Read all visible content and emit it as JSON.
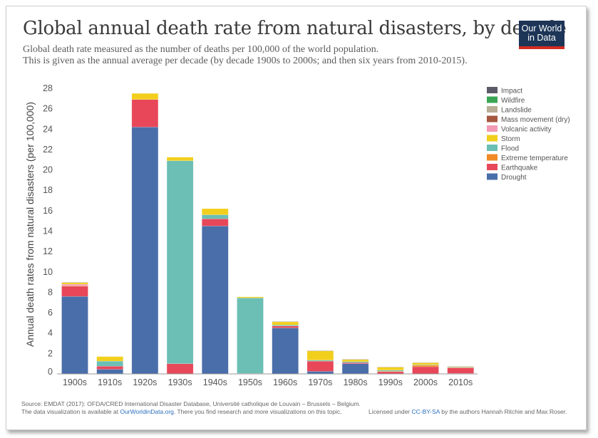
{
  "header": {
    "title": "Global annual death rate from natural disasters, by decade",
    "subtitle_line1": "Global death rate measured as the number of deaths per 100,000 of the world population.",
    "subtitle_line2": "This is given as the annual average per decade (by decade 1900s to 2000s; and then six years from 2010-2015).",
    "logo_line1": "Our World",
    "logo_line2": "in Data"
  },
  "footer": {
    "source": "Source: EMDAT (2017): OFDA/CRED International Disaster Database, Université catholique de Louvain – Brussels – Belgium.",
    "availability_prefix": "The data visualization is available at ",
    "availability_link": "OurWorldinData.org",
    "availability_suffix": ". There you find research and more visualizations on this topic.",
    "license_prefix": "Licensed under ",
    "license_link": "CC-BY-SA",
    "license_suffix": " by the authors Hannah Ritchie and Max Roser."
  },
  "colors": {
    "Impact": "#5b5b6a",
    "Wildfire": "#3aa655",
    "Landslide": "#b8ad96",
    "Mass movement (dry)": "#a5573f",
    "Volcanic activity": "#f29ab4",
    "Storm": "#f2cf1d",
    "Flood": "#6bbfb4",
    "Extreme temperature": "#f08a26",
    "Earthquake": "#e8475a",
    "Drought": "#4a6ea9"
  },
  "chart_data": {
    "type": "bar",
    "stacked": true,
    "title": "Global annual death rate from natural disasters, by decade",
    "ylabel": "Annual death rates from natural disasters (per 100,000)",
    "xlabel": "",
    "ylim": [
      0,
      28
    ],
    "yticks": [
      0,
      2,
      4,
      6,
      8,
      10,
      12,
      14,
      16,
      18,
      20,
      22,
      24,
      26,
      28
    ],
    "grid": false,
    "legend_position": "top-right",
    "legend_order": [
      "Impact",
      "Wildfire",
      "Landslide",
      "Mass movement (dry)",
      "Volcanic activity",
      "Storm",
      "Flood",
      "Extreme temperature",
      "Earthquake",
      "Drought"
    ],
    "categories": [
      "1900s",
      "1910s",
      "1920s",
      "1930s",
      "1940s",
      "1950s",
      "1960s",
      "1970s",
      "1980s",
      "1990s",
      "2000s",
      "2010s"
    ],
    "series": [
      {
        "name": "Drought",
        "values": [
          7.6,
          0.45,
          24.2,
          0,
          14.5,
          0,
          4.5,
          0.25,
          1.0,
          0.02,
          0.0,
          0.05
        ]
      },
      {
        "name": "Earthquake",
        "values": [
          1.0,
          0.3,
          2.7,
          1.0,
          0.7,
          0.05,
          0.2,
          1.0,
          0.1,
          0.2,
          0.7,
          0.55
        ]
      },
      {
        "name": "Extreme temperature",
        "values": [
          0.05,
          0,
          0,
          0,
          0,
          0,
          0,
          0,
          0,
          0.05,
          0.15,
          0.03
        ]
      },
      {
        "name": "Flood",
        "values": [
          0,
          0.5,
          0,
          19.9,
          0.4,
          7.4,
          0.1,
          0.1,
          0.1,
          0.1,
          0.05,
          0.05
        ]
      },
      {
        "name": "Volcanic activity",
        "values": [
          0.15,
          0,
          0,
          0,
          0,
          0,
          0,
          0,
          0,
          0,
          0,
          0
        ]
      },
      {
        "name": "Storm",
        "values": [
          0.15,
          0.45,
          0.6,
          0.35,
          0.6,
          0.1,
          0.3,
          0.9,
          0.2,
          0.3,
          0.2,
          0.05
        ]
      },
      {
        "name": "Mass movement (dry)",
        "values": [
          0,
          0,
          0,
          0,
          0,
          0,
          0,
          0,
          0,
          0,
          0,
          0
        ]
      },
      {
        "name": "Landslide",
        "values": [
          0.05,
          0,
          0,
          0,
          0,
          0,
          0.05,
          0.05,
          0.05,
          0.02,
          0.02,
          0.02
        ]
      },
      {
        "name": "Wildfire",
        "values": [
          0,
          0,
          0,
          0,
          0,
          0,
          0,
          0,
          0,
          0,
          0,
          0
        ]
      },
      {
        "name": "Impact",
        "values": [
          0,
          0,
          0,
          0,
          0,
          0,
          0,
          0,
          0,
          0,
          0,
          0
        ]
      }
    ]
  }
}
